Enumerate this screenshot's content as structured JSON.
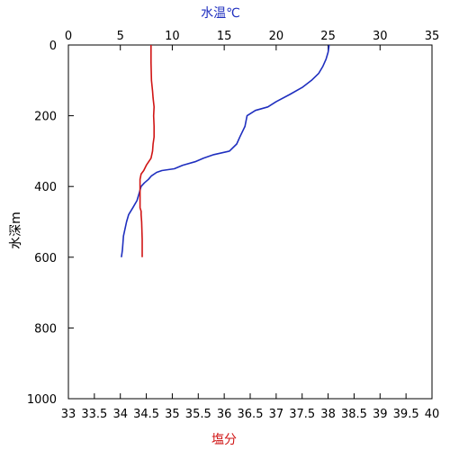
{
  "chart_data": {
    "type": "line",
    "title": "",
    "top_axis": {
      "label": "水温℃",
      "color": "#1f2fbf",
      "range": [
        0,
        35
      ],
      "ticks": [
        "0",
        "5",
        "10",
        "15",
        "20",
        "25",
        "30",
        "35"
      ]
    },
    "bottom_axis": {
      "label": "塩分",
      "color": "#d01515",
      "range": [
        33,
        40
      ],
      "ticks": [
        "33",
        "33.5",
        "34",
        "34.5",
        "35",
        "35.5",
        "36",
        "36.5",
        "37",
        "37.5",
        "38",
        "38.5",
        "39",
        "39.5",
        "40"
      ]
    },
    "y_axis": {
      "label": "水深m",
      "range": [
        0,
        1000
      ],
      "inverted": true,
      "ticks": [
        "0",
        "200",
        "400",
        "600",
        "800",
        "1000"
      ]
    },
    "grid": false,
    "series": [
      {
        "axis": "top",
        "color": "#1f2fbf",
        "depth": [
          0,
          20,
          40,
          60,
          80,
          100,
          120,
          140,
          160,
          175,
          185,
          200,
          230,
          260,
          280,
          300,
          310,
          320,
          330,
          340,
          350,
          355,
          360,
          370,
          380,
          390,
          400,
          420,
          440,
          460,
          480,
          500,
          540,
          580,
          600
        ],
        "temperature": [
          25.1,
          25.0,
          24.8,
          24.5,
          24.1,
          23.4,
          22.5,
          21.3,
          20.0,
          19.2,
          18.0,
          17.2,
          17.0,
          16.5,
          16.2,
          15.5,
          14.0,
          13.0,
          12.2,
          11.0,
          10.2,
          9.0,
          8.5,
          8.0,
          7.7,
          7.3,
          7.0,
          6.8,
          6.6,
          6.2,
          5.8,
          5.6,
          5.3,
          5.2,
          5.1
        ]
      },
      {
        "axis": "bottom",
        "color": "#d01515",
        "depth": [
          0,
          50,
          100,
          130,
          150,
          175,
          200,
          230,
          260,
          280,
          300,
          320,
          340,
          355,
          365,
          380,
          400,
          430,
          450,
          460,
          470,
          480,
          500,
          550,
          600
        ],
        "salinity": [
          34.59,
          34.59,
          34.6,
          34.62,
          34.63,
          34.65,
          34.64,
          34.65,
          34.65,
          34.63,
          34.62,
          34.59,
          34.5,
          34.45,
          34.4,
          34.38,
          34.38,
          34.38,
          34.38,
          34.38,
          34.4,
          34.4,
          34.41,
          34.42,
          34.42
        ]
      }
    ]
  }
}
